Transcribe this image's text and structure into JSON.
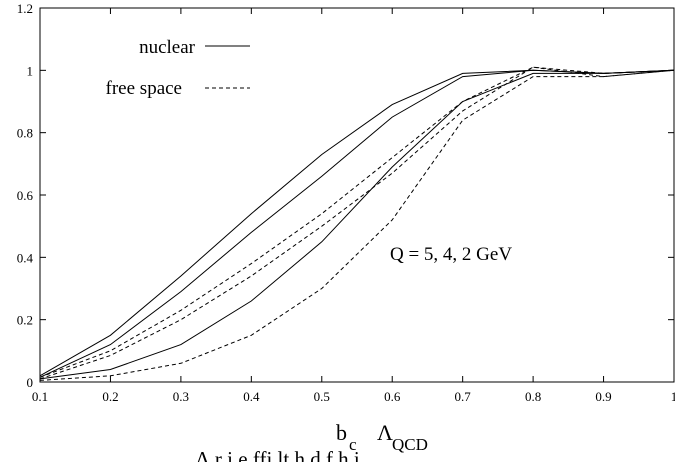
{
  "chart_data": {
    "type": "line",
    "title": "",
    "xlim": [
      0.1,
      1.0
    ],
    "ylim": [
      0,
      1.2
    ],
    "grid": false,
    "legend_placement": "top-left",
    "x": [
      0.1,
      0.2,
      0.3,
      0.4,
      0.5,
      0.6,
      0.7,
      0.8,
      0.9,
      1.0
    ],
    "x_tick_labels": [
      "0.1",
      "0.2",
      "0.3",
      "0.4",
      "0.5",
      "0.6",
      "0.7",
      "0.8",
      "0.9",
      "1"
    ],
    "y_tick_labels": [
      "0",
      "0.2",
      "0.4",
      "0.6",
      "0.8",
      "1",
      "1.2"
    ],
    "y_ticks": [
      0,
      0.2,
      0.4,
      0.6,
      0.8,
      1.0,
      1.2
    ],
    "xlabel": {
      "main": "b",
      "sub1": "c",
      "lambda": "Λ",
      "sub2": "QCD"
    },
    "legend": [
      {
        "label": "nuclear",
        "style": "solid"
      },
      {
        "label": "free space",
        "style": "dashed"
      }
    ],
    "annotation": "Q = 5, 4, 2 GeV",
    "partial_caption": "Λ          r      i    e     ffi   lt   h       d       f  h  i       ",
    "series": [
      {
        "style": "solid",
        "values": [
          0.02,
          0.15,
          0.34,
          0.54,
          0.73,
          0.89,
          0.99,
          1.0,
          0.99,
          1.0
        ]
      },
      {
        "style": "solid",
        "values": [
          0.015,
          0.12,
          0.29,
          0.48,
          0.66,
          0.85,
          0.98,
          1.0,
          0.99,
          1.0
        ]
      },
      {
        "style": "solid",
        "values": [
          0.01,
          0.04,
          0.12,
          0.26,
          0.45,
          0.69,
          0.9,
          0.99,
          0.99,
          1.0
        ]
      },
      {
        "style": "dashed",
        "values": [
          0.015,
          0.1,
          0.23,
          0.38,
          0.54,
          0.72,
          0.9,
          1.01,
          0.99,
          1.0
        ]
      },
      {
        "style": "dashed",
        "values": [
          0.01,
          0.085,
          0.2,
          0.34,
          0.5,
          0.67,
          0.87,
          1.01,
          0.98,
          1.0
        ]
      },
      {
        "style": "dashed",
        "values": [
          0.005,
          0.02,
          0.06,
          0.15,
          0.3,
          0.52,
          0.84,
          0.98,
          0.98,
          1.0
        ]
      }
    ]
  }
}
